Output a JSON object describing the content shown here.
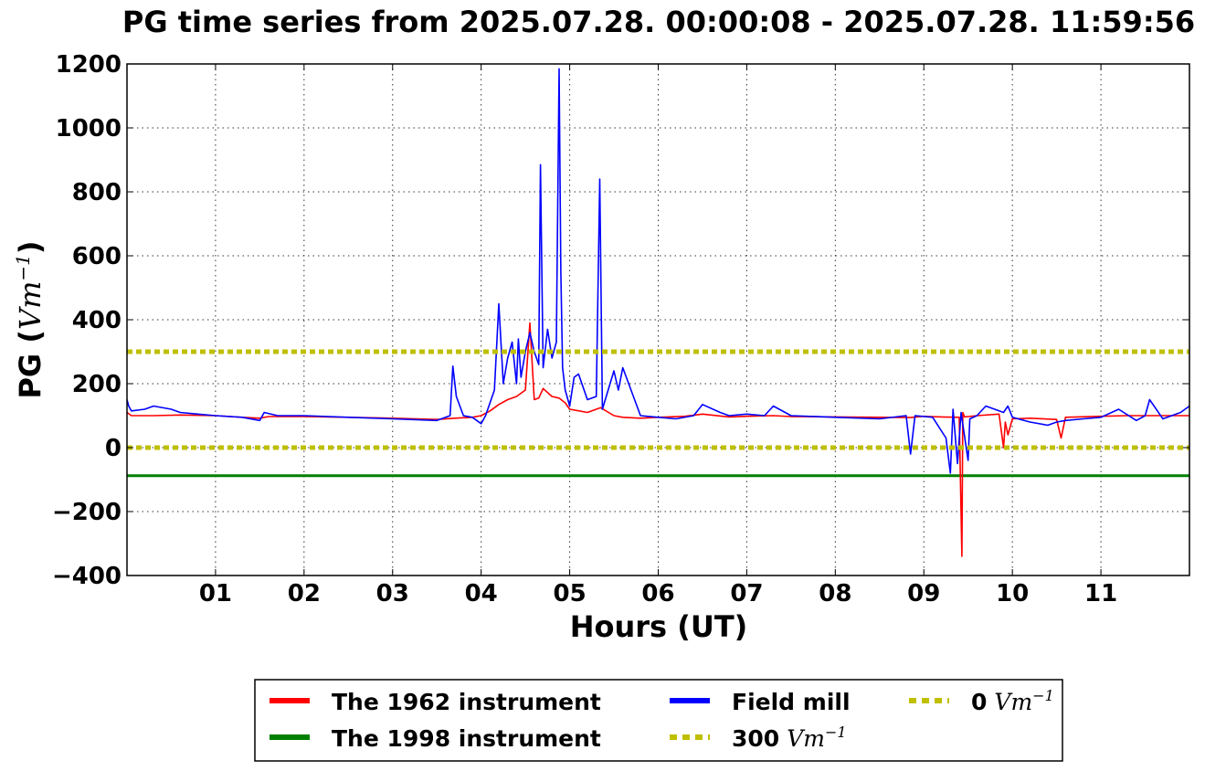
{
  "chart_data": {
    "type": "line",
    "title": "PG time series from 2025.07.28. 00:00:08 - 2025.07.28. 11:59:56",
    "xlabel": "Hours (UT)",
    "ylabel": {
      "prefix": "PG (",
      "unit_base": "Vm",
      "unit_exp": "−1",
      "suffix": ")"
    },
    "xlim": [
      0,
      12
    ],
    "ylim": [
      -400,
      1200
    ],
    "grid": true,
    "legend_position": "bottom-center",
    "x_ticks": [
      {
        "value": 1,
        "label": "01"
      },
      {
        "value": 2,
        "label": "02"
      },
      {
        "value": 3,
        "label": "03"
      },
      {
        "value": 4,
        "label": "04"
      },
      {
        "value": 5,
        "label": "05"
      },
      {
        "value": 6,
        "label": "06"
      },
      {
        "value": 7,
        "label": "07"
      },
      {
        "value": 8,
        "label": "08"
      },
      {
        "value": 9,
        "label": "09"
      },
      {
        "value": 10,
        "label": "10"
      },
      {
        "value": 11,
        "label": "11"
      }
    ],
    "y_ticks": [
      {
        "value": 1200,
        "label": "1200"
      },
      {
        "value": 1000,
        "label": "1000"
      },
      {
        "value": 800,
        "label": "800"
      },
      {
        "value": 600,
        "label": "600"
      },
      {
        "value": 400,
        "label": "400"
      },
      {
        "value": 200,
        "label": "200"
      },
      {
        "value": 0,
        "label": "0"
      },
      {
        "value": -200,
        "label": "−200"
      },
      {
        "value": -400,
        "label": "−400"
      }
    ],
    "series": [
      {
        "name": "The 1962 instrument",
        "color": "#ff0000",
        "style": "solid",
        "x": [
          0.0,
          0.05,
          0.3,
          0.6,
          1.0,
          1.3,
          1.5,
          1.6,
          2.0,
          2.5,
          3.0,
          3.5,
          3.7,
          3.9,
          4.0,
          4.1,
          4.2,
          4.3,
          4.4,
          4.5,
          4.55,
          4.6,
          4.65,
          4.7,
          4.8,
          4.88,
          4.95,
          5.0,
          5.2,
          5.35,
          5.5,
          5.6,
          5.8,
          6.0,
          6.3,
          6.5,
          6.8,
          7.0,
          7.3,
          7.5,
          8.0,
          8.5,
          8.85,
          9.0,
          9.2,
          9.4,
          9.43,
          9.44,
          9.46,
          9.5,
          9.6,
          9.85,
          9.9,
          9.92,
          9.95,
          10.0,
          10.2,
          10.5,
          10.55,
          10.6,
          11.0,
          11.3,
          11.5,
          12.0
        ],
        "y": [
          110,
          100,
          100,
          102,
          100,
          95,
          92,
          97,
          97,
          95,
          92,
          88,
          92,
          95,
          100,
          115,
          135,
          150,
          160,
          180,
          390,
          150,
          155,
          185,
          160,
          155,
          140,
          120,
          110,
          125,
          100,
          95,
          92,
          95,
          98,
          105,
          96,
          98,
          100,
          97,
          96,
          95,
          94,
          98,
          96,
          95,
          -340,
          110,
          96,
          97,
          100,
          105,
          0,
          80,
          40,
          90,
          92,
          88,
          30,
          95,
          98,
          100,
          100,
          100
        ]
      },
      {
        "name": "The 1998 instrument",
        "color": "#008000",
        "style": "solid",
        "x": [
          0,
          12
        ],
        "y": [
          -88,
          -88
        ]
      },
      {
        "name": "Field mill",
        "color": "#0000ff",
        "style": "solid",
        "x": [
          0.0,
          0.02,
          0.05,
          0.2,
          0.3,
          0.5,
          0.6,
          0.8,
          1.0,
          1.3,
          1.5,
          1.55,
          1.7,
          2.0,
          2.5,
          3.0,
          3.5,
          3.65,
          3.68,
          3.72,
          3.8,
          3.9,
          4.0,
          4.05,
          4.15,
          4.2,
          4.25,
          4.3,
          4.35,
          4.4,
          4.42,
          4.45,
          4.5,
          4.55,
          4.6,
          4.65,
          4.67,
          4.7,
          4.75,
          4.8,
          4.85,
          4.88,
          4.9,
          4.92,
          4.95,
          5.0,
          5.05,
          5.1,
          5.2,
          5.3,
          5.34,
          5.37,
          5.5,
          5.55,
          5.6,
          5.8,
          6.0,
          6.2,
          6.4,
          6.5,
          6.7,
          6.8,
          7.0,
          7.2,
          7.3,
          7.5,
          8.0,
          8.5,
          8.8,
          8.85,
          8.9,
          9.1,
          9.25,
          9.3,
          9.33,
          9.38,
          9.42,
          9.5,
          9.52,
          9.6,
          9.7,
          9.9,
          9.95,
          10.0,
          10.2,
          10.4,
          10.5,
          10.6,
          10.8,
          11.0,
          11.2,
          11.4,
          11.5,
          11.55,
          11.7,
          11.9,
          12.0
        ],
        "y": [
          150,
          130,
          115,
          120,
          130,
          120,
          110,
          105,
          100,
          95,
          85,
          110,
          100,
          100,
          95,
          90,
          85,
          100,
          255,
          160,
          100,
          95,
          75,
          100,
          180,
          450,
          200,
          280,
          330,
          200,
          340,
          220,
          300,
          360,
          300,
          260,
          885,
          250,
          370,
          280,
          330,
          1185,
          550,
          250,
          180,
          130,
          220,
          230,
          150,
          160,
          840,
          120,
          240,
          180,
          250,
          100,
          95,
          90,
          100,
          135,
          110,
          100,
          105,
          100,
          130,
          100,
          95,
          90,
          100,
          -20,
          100,
          95,
          30,
          -80,
          120,
          -50,
          110,
          -40,
          90,
          100,
          130,
          110,
          130,
          95,
          80,
          70,
          80,
          85,
          90,
          95,
          120,
          85,
          100,
          150,
          90,
          110,
          130
        ]
      },
      {
        "name": "300",
        "color": "#bfbf00",
        "style": "dotted",
        "x": [
          0,
          12
        ],
        "y": [
          300,
          300
        ]
      },
      {
        "name": "0",
        "color": "#bfbf00",
        "style": "dotted",
        "x": [
          0,
          12
        ],
        "y": [
          0,
          0
        ]
      }
    ],
    "legend": [
      {
        "label": "The 1962 instrument",
        "unit_base": "",
        "unit_exp": "",
        "color": "#ff0000",
        "style": "solid"
      },
      {
        "label": "The 1998 instrument",
        "unit_base": "",
        "unit_exp": "",
        "color": "#008000",
        "style": "solid"
      },
      {
        "label": "Field mill",
        "unit_base": "",
        "unit_exp": "",
        "color": "#0000ff",
        "style": "solid"
      },
      {
        "label": "300",
        "unit_base": "Vm",
        "unit_exp": "−1",
        "color": "#bfbf00",
        "style": "dotted"
      },
      {
        "label": "0",
        "unit_base": "Vm",
        "unit_exp": "−1",
        "color": "#bfbf00",
        "style": "dotted"
      }
    ]
  }
}
